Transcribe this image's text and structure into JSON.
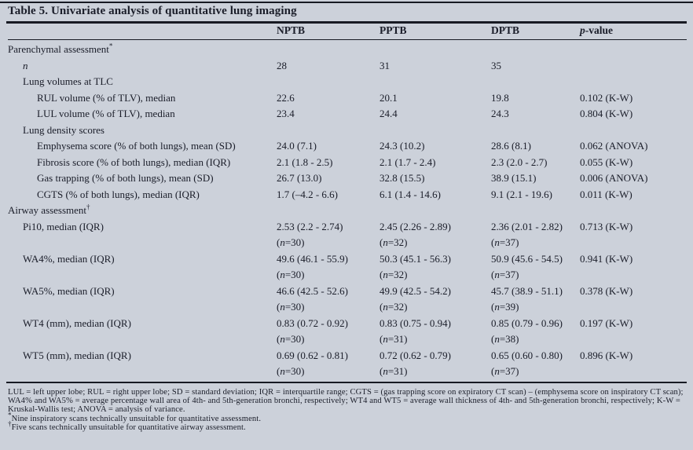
{
  "title": "Table 5. Univariate analysis of quantitative lung imaging",
  "header": {
    "columns": [
      "",
      "NPTB",
      "PPTB",
      "DPTB",
      "p-value"
    ],
    "italic_lead": [
      false,
      false,
      false,
      false,
      true
    ]
  },
  "rows": [
    {
      "label": "Parenchymal assessment",
      "sup": "*",
      "indent": 0,
      "italic": false,
      "values": [
        "",
        "",
        "",
        ""
      ]
    },
    {
      "label": "n",
      "indent": 1,
      "italic": true,
      "values": [
        "28",
        "31",
        "35",
        ""
      ]
    },
    {
      "label": "Lung volumes at TLC",
      "indent": 1,
      "italic": false,
      "values": [
        "",
        "",
        "",
        ""
      ]
    },
    {
      "label": "RUL volume (% of TLV), median",
      "indent": 2,
      "italic": false,
      "values": [
        "22.6",
        "20.1",
        "19.8",
        "0.102 (K-W)"
      ]
    },
    {
      "label": "LUL volume (% of TLV), median",
      "indent": 2,
      "italic": false,
      "values": [
        "23.4",
        "24.4",
        "24.3",
        "0.804 (K-W)"
      ]
    },
    {
      "label": "Lung density scores",
      "indent": 1,
      "italic": false,
      "values": [
        "",
        "",
        "",
        ""
      ]
    },
    {
      "label": "Emphysema score (% of both lungs), mean (SD)",
      "indent": 2,
      "italic": false,
      "values": [
        "24.0 (7.1)",
        "24.3 (10.2)",
        "28.6 (8.1)",
        "0.062 (ANOVA)"
      ]
    },
    {
      "label": "Fibrosis score (% of both lungs), median (IQR)",
      "indent": 2,
      "italic": false,
      "values": [
        "2.1 (1.8 - 2.5)",
        "2.1 (1.7 - 2.4)",
        "2.3 (2.0 - 2.7)",
        "0.055 (K-W)"
      ]
    },
    {
      "label": "Gas trapping (% of both lungs), mean (SD)",
      "indent": 2,
      "italic": false,
      "values": [
        "26.7 (13.0)",
        "32.8 (15.5)",
        "38.9 (15.1)",
        "0.006 (ANOVA)"
      ]
    },
    {
      "label": "CGTS (% of both lungs), median (IQR)",
      "indent": 2,
      "italic": false,
      "values": [
        "1.7 (–4.2 - 6.6)",
        "6.1 (1.4 - 14.6)",
        "9.1 (2.1 - 19.6)",
        "0.011 (K-W)"
      ]
    },
    {
      "label": "Airway assessment",
      "sup": "†",
      "indent": 0,
      "italic": false,
      "values": [
        "",
        "",
        "",
        ""
      ]
    },
    {
      "label": "Pi10, median (IQR)",
      "indent": 1,
      "italic": false,
      "values": [
        "2.53 (2.2 - 2.74)",
        "2.45 (2.26 - 2.89)",
        "2.36 (2.01 - 2.82)",
        "0.713 (K-W)"
      ],
      "sub_values": [
        "(n=30)",
        "(n=32)",
        "(n=37)",
        ""
      ]
    },
    {
      "label": "WA4%, median (IQR)",
      "indent": 1,
      "italic": false,
      "values": [
        "49.6 (46.1 - 55.9)",
        "50.3 (45.1 - 56.3)",
        "50.9 (45.6 - 54.5)",
        "0.941 (K-W)"
      ],
      "sub_values": [
        "(n=30)",
        "(n=32)",
        "(n=37)",
        ""
      ]
    },
    {
      "label": "WA5%, median (IQR)",
      "indent": 1,
      "italic": false,
      "values": [
        "46.6 (42.5 - 52.6)",
        "49.9 (42.5 - 54.2)",
        "45.7 (38.9 - 51.1)",
        "0.378 (K-W)"
      ],
      "sub_values": [
        "(n=30)",
        "(n=32)",
        "(n=39)",
        ""
      ]
    },
    {
      "label": "WT4 (mm), median (IQR)",
      "indent": 1,
      "italic": false,
      "values": [
        "0.83 (0.72 - 0.92)",
        "0.83 (0.75 - 0.94)",
        "0.85 (0.79 - 0.96)",
        "0.197 (K-W)"
      ],
      "sub_values": [
        "(n=30)",
        "(n=31)",
        "(n=38)",
        ""
      ]
    },
    {
      "label": "WT5 (mm), median (IQR)",
      "indent": 1,
      "italic": false,
      "values": [
        "0.69 (0.62 - 0.81)",
        "0.72 (0.62 - 0.79)",
        "0.65 (0.60 - 0.80)",
        "0.896 (K-W)"
      ],
      "sub_values": [
        "(n=30)",
        "(n=31)",
        "(n=37)",
        ""
      ]
    }
  ],
  "footnotes": {
    "abbreviations": "LUL = left upper lobe; RUL = right upper lobe; SD = standard deviation; IQR = interquartile range; CGTS = (gas trapping score on expiratory CT scan) – (emphysema score on inspiratory CT scan); WA4% and WA5% = average percentage wall area of 4th- and 5th-generation bronchi, respectively; WT4 and WT5 = average wall thickness of 4th- and 5th-generation bronchi, respectively; K-W = Kruskal-Wallis test; ANOVA = analysis of variance.",
    "notes": [
      {
        "marker": "*",
        "text": "Nine inspiratory scans technically unsuitable for quantitative assessment."
      },
      {
        "marker": "†",
        "text": "Five scans technically unsuitable for quantitative airway assessment."
      }
    ]
  },
  "colors": {
    "background": "#ccd1da",
    "text": "#1a1d29",
    "rule": "#171a23"
  }
}
